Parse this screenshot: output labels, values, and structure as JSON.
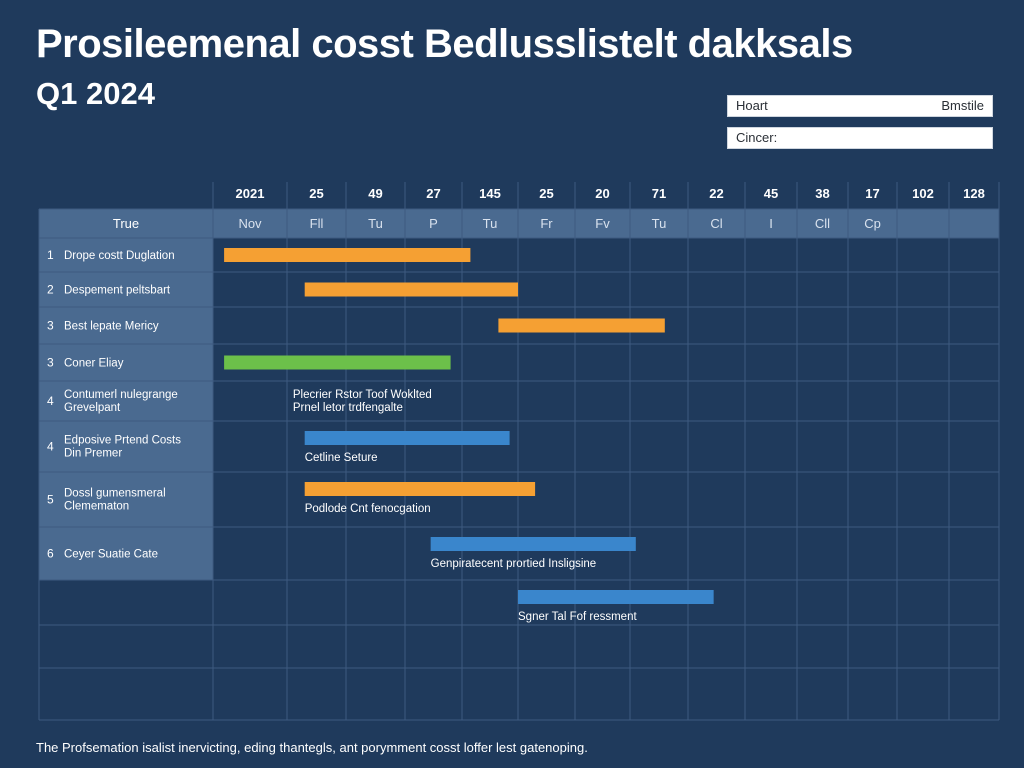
{
  "header": {
    "title": "Prosileemenal cosst Bedlusslistelt dakksals",
    "subtitle": "Q1 2024"
  },
  "filters": {
    "heart_label": "Hoart",
    "heart_value": "Bmstile",
    "cancer_label": "Cincer:"
  },
  "footer": {
    "caption": "The Profsemation isalist inervicting, eding thantegls, ant porymment cosst loffer lest gatenoping."
  },
  "colors": {
    "orange": "#f5a033",
    "green": "#6cc04a",
    "blue": "#3a86cc",
    "label_column": "#4a6a90",
    "header_row": "#4a6a90",
    "grid": "#3d5a80",
    "background": "#1f3a5c"
  },
  "chart_data": {
    "type": "gantt",
    "timeline_top": [
      "2021",
      "25",
      "49",
      "27",
      "145",
      "25",
      "20",
      "71",
      "22",
      "45",
      "38",
      "17",
      "102",
      "128"
    ],
    "timeline_sub": [
      "Nov",
      "Fll",
      "Tu",
      "P",
      "Tu",
      "Fr",
      "Fv",
      "Tu",
      "Cl",
      "I",
      "Cll",
      "Cp",
      "",
      ""
    ],
    "label_header": "True",
    "tasks": [
      {
        "num": "1",
        "label": "Drope costt Duglation",
        "start": 0.15,
        "end": 4.15,
        "color": "orange",
        "note": ""
      },
      {
        "num": "2",
        "label": "Despement peltsbart",
        "start": 1.3,
        "end": 5.0,
        "color": "orange",
        "note": ""
      },
      {
        "num": "3",
        "label": "Best lepate Mericy",
        "start": 4.65,
        "end": 7.6,
        "color": "orange",
        "note": ""
      },
      {
        "num": "3",
        "label": "Coner Eliay",
        "start": 0.15,
        "end": 3.8,
        "color": "green",
        "note": ""
      },
      {
        "num": "4",
        "label": "Contumerl nulegrange Grevelpant",
        "start": null,
        "end": null,
        "color": "",
        "note": "Plecrier Rstor Toof Woklted Prnel letor trdfengalte"
      },
      {
        "num": "4",
        "label": "Edposive Prtend Costs Din Premer",
        "start": 1.3,
        "end": 4.85,
        "color": "blue",
        "note": "Cetline Seture"
      },
      {
        "num": "5",
        "label": "Dossl gumensmeral Clemematon",
        "start": 1.3,
        "end": 5.3,
        "color": "orange",
        "note": "Podlode Cnt fenocgation"
      },
      {
        "num": "6",
        "label": "Ceyer Suatie Cate",
        "start": 3.45,
        "end": 7.1,
        "color": "blue",
        "note": "Genpiratecent prortied Insligsine"
      },
      {
        "num": "",
        "label": "",
        "start": 5.0,
        "end": 8.45,
        "color": "blue",
        "note": "Sgner Tal Fof ressment"
      }
    ]
  }
}
